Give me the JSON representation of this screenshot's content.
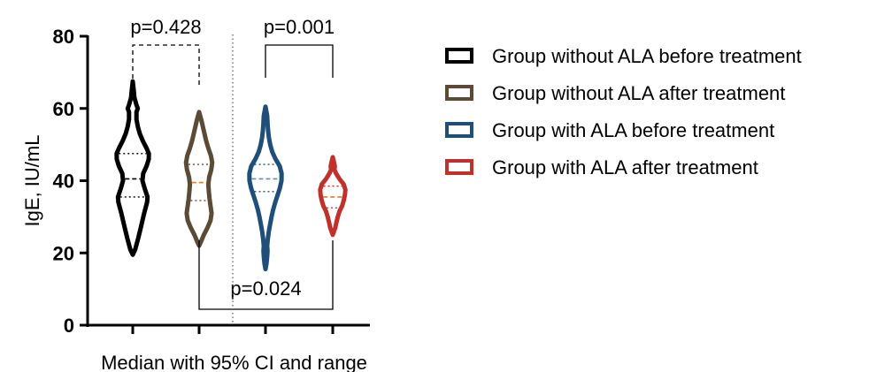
{
  "chart_data": {
    "type": "violin",
    "xlabel": "Median with 95% CI and range",
    "ylabel": "IgE, IU/mL",
    "ylim": [
      0,
      80
    ],
    "yticks": [
      0,
      20,
      40,
      60,
      80
    ],
    "legend_position": "right",
    "series": [
      {
        "name": "Group without ALA before treatment",
        "color": "#000000",
        "min": 19.5,
        "max": 67.5,
        "median": 40.5,
        "ci_low": 35.5,
        "ci_high": 47.5,
        "profile": [
          [
            19.5,
            0.0
          ],
          [
            21,
            0.15
          ],
          [
            24,
            0.32
          ],
          [
            27,
            0.48
          ],
          [
            31,
            0.68
          ],
          [
            34,
            0.85
          ],
          [
            35.5,
            0.88
          ],
          [
            38,
            0.7
          ],
          [
            40,
            0.58
          ],
          [
            42,
            0.62
          ],
          [
            44,
            0.82
          ],
          [
            46,
            0.95
          ],
          [
            47.5,
            0.96
          ],
          [
            49,
            0.82
          ],
          [
            51,
            0.6
          ],
          [
            53,
            0.42
          ],
          [
            55,
            0.3
          ],
          [
            57,
            0.22
          ],
          [
            59,
            0.22
          ],
          [
            60,
            0.3
          ],
          [
            61,
            0.22
          ],
          [
            63,
            0.1
          ],
          [
            65,
            0.06
          ],
          [
            67.5,
            0.0
          ]
        ]
      },
      {
        "name": "Group without ALA after treatment",
        "color": "#5b4a36",
        "min": 22,
        "max": 59,
        "median": 39.5,
        "ci_low": 34.5,
        "ci_high": 44.5,
        "profile": [
          [
            22,
            0.0
          ],
          [
            23,
            0.1
          ],
          [
            25,
            0.28
          ],
          [
            27,
            0.5
          ],
          [
            29,
            0.68
          ],
          [
            31,
            0.74
          ],
          [
            33,
            0.68
          ],
          [
            35,
            0.62
          ],
          [
            37,
            0.58
          ],
          [
            39,
            0.55
          ],
          [
            41,
            0.6
          ],
          [
            43,
            0.72
          ],
          [
            45,
            0.78
          ],
          [
            47,
            0.7
          ],
          [
            49,
            0.55
          ],
          [
            51,
            0.42
          ],
          [
            53,
            0.32
          ],
          [
            55,
            0.22
          ],
          [
            57,
            0.12
          ],
          [
            59,
            0.0
          ]
        ]
      },
      {
        "name": "Group with ALA before treatment",
        "color": "#1f4e79",
        "min": 15.5,
        "max": 60.5,
        "median": 40.5,
        "ci_low": 37,
        "ci_high": 44.5,
        "profile": [
          [
            15.5,
            0.0
          ],
          [
            17,
            0.06
          ],
          [
            19,
            0.1
          ],
          [
            20.5,
            0.12
          ],
          [
            22,
            0.1
          ],
          [
            24,
            0.14
          ],
          [
            26,
            0.2
          ],
          [
            28,
            0.28
          ],
          [
            30,
            0.36
          ],
          [
            32,
            0.46
          ],
          [
            34,
            0.58
          ],
          [
            36,
            0.72
          ],
          [
            38,
            0.86
          ],
          [
            40,
            0.95
          ],
          [
            42,
            0.96
          ],
          [
            44,
            0.85
          ],
          [
            46,
            0.6
          ],
          [
            48,
            0.4
          ],
          [
            50,
            0.28
          ],
          [
            52,
            0.2
          ],
          [
            54,
            0.15
          ],
          [
            56,
            0.12
          ],
          [
            58,
            0.1
          ],
          [
            60.5,
            0.0
          ]
        ]
      },
      {
        "name": "Group with ALA after treatment",
        "color": "#c1312b",
        "min": 25,
        "max": 46.5,
        "median": 35.5,
        "ci_low": 32.5,
        "ci_high": 38.5,
        "profile": [
          [
            25,
            0.0
          ],
          [
            26,
            0.08
          ],
          [
            27,
            0.15
          ],
          [
            28.5,
            0.22
          ],
          [
            30,
            0.3
          ],
          [
            31.5,
            0.4
          ],
          [
            33,
            0.56
          ],
          [
            34.5,
            0.65
          ],
          [
            36,
            0.72
          ],
          [
            37.5,
            0.75
          ],
          [
            39,
            0.65
          ],
          [
            40.5,
            0.4
          ],
          [
            42,
            0.2
          ],
          [
            43,
            0.1
          ],
          [
            44,
            0.12
          ],
          [
            45,
            0.08
          ],
          [
            46.5,
            0.0
          ]
        ]
      }
    ],
    "comparisons": [
      {
        "from": 0,
        "to": 1,
        "label": "p=0.428",
        "style": "dashed",
        "side": "top"
      },
      {
        "from": 2,
        "to": 3,
        "label": "p=0.001",
        "style": "solid",
        "side": "top"
      },
      {
        "from": 1,
        "to": 3,
        "label": "p=0.024",
        "style": "solid",
        "side": "bottom"
      }
    ]
  }
}
